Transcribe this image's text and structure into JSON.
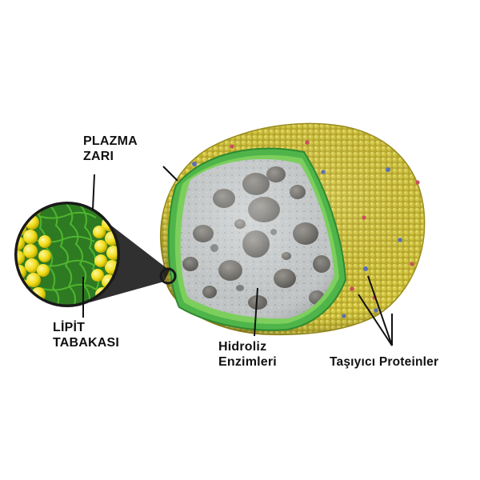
{
  "labels": {
    "plasma_membrane": [
      "PLAZMA",
      "ZARI"
    ],
    "lipid_layer": [
      "LİPİT",
      "TABAKASI"
    ],
    "hydrolytic_enzymes": [
      "Hidroliz",
      "Enzimleri"
    ],
    "transport_proteins": "Taşıyıcı Proteinler"
  },
  "colors": {
    "membrane_yellow": "#cfc23a",
    "membrane_yellow_light": "#e6dc5a",
    "inner_green": "#4fb54a",
    "interior_gray": "#b8bcbd",
    "enzyme_dark": "#6a6864",
    "protein_red": "#c8505a",
    "protein_blue": "#5a6fb8",
    "lipid_head": "#f2e21e",
    "lipid_tail": "#3f9f2e"
  }
}
